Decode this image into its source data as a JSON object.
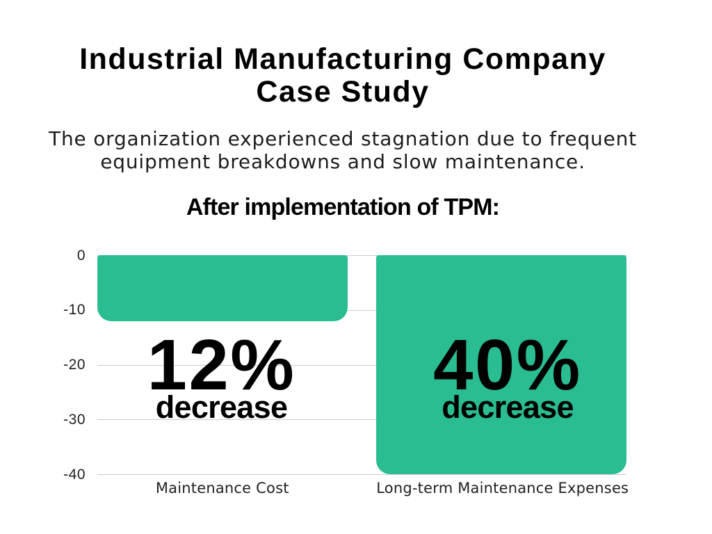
{
  "title": {
    "line1": "Industrial Manufacturing Company",
    "line2": "Case Study"
  },
  "subtitle": {
    "line1": "The organization experienced stagnation due to frequent",
    "line2": "equipment breakdowns and slow maintenance."
  },
  "chart_data": {
    "type": "bar",
    "title": "After implementation of TPM:",
    "categories": [
      "Maintenance Cost",
      "Long-term Maintenance Expenses"
    ],
    "values": [
      -12,
      -40
    ],
    "bar_labels": [
      {
        "percent": "12%",
        "caption": "decrease"
      },
      {
        "percent": "40%",
        "caption": "decrease"
      }
    ],
    "yticks": [
      "0",
      "-10",
      "-20",
      "-30",
      "-40"
    ],
    "ylim": [
      -40,
      0
    ],
    "grid": true,
    "legend": false,
    "bar_color": "#2abd92",
    "grid_color": "#cccccc",
    "label_color": "#000000"
  }
}
